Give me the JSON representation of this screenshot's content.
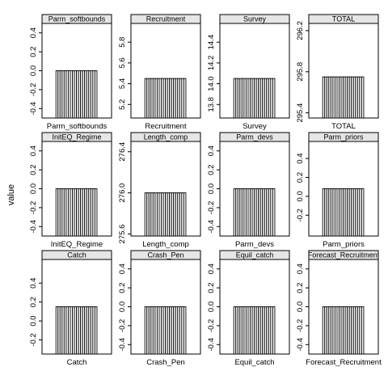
{
  "y_axis_label": "value",
  "chart_data": [
    {
      "type": "bar",
      "title": "Parm_softbounds",
      "xlabel": "Parm_softbounds",
      "ticks": [
        "-0.4",
        "-0.2",
        "0.0",
        "0.2",
        "0.4"
      ],
      "tick_values": [
        -0.4,
        -0.2,
        0.0,
        0.2,
        0.4
      ],
      "ylim": [
        -0.5,
        0.5
      ],
      "bar_count": 20,
      "bar_value": 0.0,
      "grid": false
    },
    {
      "type": "bar",
      "title": "Recruitment",
      "xlabel": "Recruitment",
      "ticks": [
        "5.2",
        "5.4",
        "5.6",
        "5.8"
      ],
      "tick_values": [
        5.2,
        5.4,
        5.6,
        5.8
      ],
      "ylim": [
        5.07,
        5.98
      ],
      "bar_count": 20,
      "bar_value": 5.45,
      "grid": false
    },
    {
      "type": "bar",
      "title": "Survey",
      "xlabel": "Survey",
      "ticks": [
        "13.8",
        "14.0",
        "14.2",
        "14.4"
      ],
      "tick_values": [
        13.8,
        14.0,
        14.2,
        14.4
      ],
      "ylim": [
        13.67,
        14.58
      ],
      "bar_count": 20,
      "bar_value": 14.05,
      "grid": false
    },
    {
      "type": "bar",
      "title": "TOTAL",
      "xlabel": "TOTAL",
      "ticks": [
        "295.4",
        "295.8",
        "296.2"
      ],
      "tick_values": [
        295.4,
        295.8,
        296.2
      ],
      "ylim": [
        295.35,
        296.27
      ],
      "bar_count": 20,
      "bar_value": 295.75,
      "grid": false
    },
    {
      "type": "bar",
      "title": "InitEQ_Regime",
      "xlabel": "InitEQ_Regime",
      "ticks": [
        "-0.4",
        "-0.2",
        "0.0",
        "0.2",
        "0.4"
      ],
      "tick_values": [
        -0.4,
        -0.2,
        0.0,
        0.2,
        0.4
      ],
      "ylim": [
        -0.5,
        0.5
      ],
      "bar_count": 20,
      "bar_value": 0.0,
      "grid": false
    },
    {
      "type": "bar",
      "title": "Length_comp",
      "xlabel": "Length_comp",
      "ticks": [
        "275.6",
        "276.0",
        "276.4"
      ],
      "tick_values": [
        275.6,
        276.0,
        276.4
      ],
      "ylim": [
        275.58,
        276.5
      ],
      "bar_count": 20,
      "bar_value": 276.0,
      "grid": false
    },
    {
      "type": "bar",
      "title": "Parm_devs",
      "xlabel": "Parm_devs",
      "ticks": [
        "-0.4",
        "-0.2",
        "0.0",
        "0.2",
        "0.4"
      ],
      "tick_values": [
        -0.4,
        -0.2,
        0.0,
        0.2,
        0.4
      ],
      "ylim": [
        -0.5,
        0.5
      ],
      "bar_count": 20,
      "bar_value": 0.0,
      "grid": false
    },
    {
      "type": "bar",
      "title": "Parm_priors",
      "xlabel": "Parm_priors",
      "ticks": [
        "-0.2",
        "0.0",
        "0.2",
        "0.4"
      ],
      "tick_values": [
        -0.2,
        0.0,
        0.2,
        0.4
      ],
      "ylim": [
        -0.42,
        0.58
      ],
      "bar_count": 20,
      "bar_value": 0.08,
      "grid": false
    },
    {
      "type": "bar",
      "title": "Catch",
      "xlabel": "Catch",
      "ticks": [
        "-0.2",
        "0.0",
        "0.2",
        "0.4"
      ],
      "tick_values": [
        -0.2,
        0.0,
        0.2,
        0.4
      ],
      "ylim": [
        -0.35,
        0.65
      ],
      "bar_count": 20,
      "bar_value": 0.15,
      "grid": false
    },
    {
      "type": "bar",
      "title": "Crash_Pen",
      "xlabel": "Crash_Pen",
      "ticks": [
        "-0.4",
        "-0.2",
        "0.0",
        "0.2",
        "0.4"
      ],
      "tick_values": [
        -0.4,
        -0.2,
        0.0,
        0.2,
        0.4
      ],
      "ylim": [
        -0.5,
        0.5
      ],
      "bar_count": 20,
      "bar_value": 0.0,
      "grid": false
    },
    {
      "type": "bar",
      "title": "Equil_catch",
      "xlabel": "Equil_catch",
      "ticks": [
        "-0.4",
        "-0.2",
        "0.0",
        "0.2",
        "0.4"
      ],
      "tick_values": [
        -0.4,
        -0.2,
        0.0,
        0.2,
        0.4
      ],
      "ylim": [
        -0.5,
        0.5
      ],
      "bar_count": 20,
      "bar_value": 0.0,
      "grid": false
    },
    {
      "type": "bar",
      "title": "Forecast_Recruitment",
      "xlabel": "Forecast_Recruitment",
      "ticks": [
        "-0.4",
        "-0.2",
        "0.0",
        "0.2",
        "0.4"
      ],
      "tick_values": [
        -0.4,
        -0.2,
        0.0,
        0.2,
        0.4
      ],
      "ylim": [
        -0.5,
        0.5
      ],
      "bar_count": 20,
      "bar_value": 0.0,
      "grid": false
    }
  ]
}
